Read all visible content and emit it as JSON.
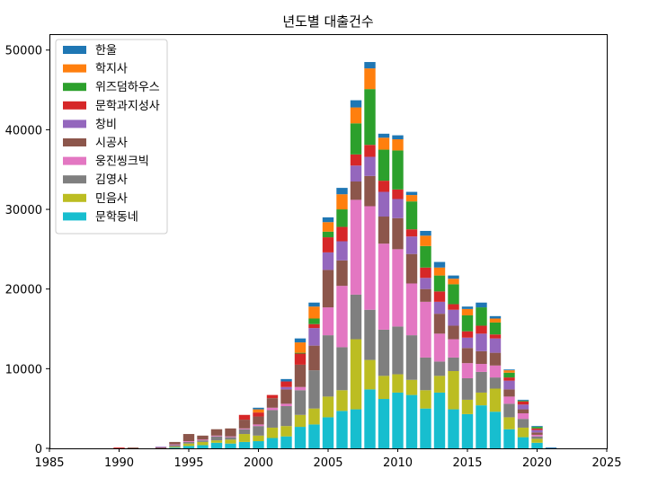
{
  "chart_data": {
    "type": "bar",
    "stacked": true,
    "title": "년도별 대출건수",
    "xlabel": "",
    "ylabel": "",
    "xlim": [
      1985,
      2025
    ],
    "ylim": [
      0,
      52000
    ],
    "xticks": [
      1985,
      1990,
      1995,
      2000,
      2005,
      2010,
      2015,
      2020,
      2025
    ],
    "yticks": [
      0,
      10000,
      20000,
      30000,
      40000,
      50000
    ],
    "grid": false,
    "legend_position": "upper-left",
    "x": [
      1990,
      1991,
      1993,
      1994,
      1995,
      1996,
      1997,
      1998,
      1999,
      2000,
      2001,
      2002,
      2003,
      2004,
      2005,
      2006,
      2007,
      2008,
      2009,
      2010,
      2011,
      2012,
      2013,
      2014,
      2015,
      2016,
      2017,
      2018,
      2019,
      2020,
      2021
    ],
    "series": [
      {
        "name": "문학동네",
        "color": "#17becf",
        "values": [
          0,
          0,
          0,
          100,
          300,
          400,
          700,
          600,
          800,
          900,
          1300,
          1500,
          2700,
          3000,
          3900,
          4700,
          4900,
          7400,
          6200,
          7000,
          6700,
          5000,
          7000,
          4900,
          4300,
          5400,
          4600,
          2400,
          1400,
          700,
          0
        ]
      },
      {
        "name": "민음사",
        "color": "#bcbd22",
        "values": [
          0,
          0,
          0,
          100,
          300,
          400,
          300,
          500,
          1000,
          700,
          1300,
          1300,
          1500,
          2000,
          2600,
          2600,
          8800,
          3700,
          2900,
          2300,
          1900,
          2300,
          2100,
          4800,
          1800,
          1600,
          2900,
          1500,
          1200,
          500,
          0
        ]
      },
      {
        "name": "김영사",
        "color": "#7f7f7f",
        "values": [
          0,
          0,
          0,
          200,
          200,
          200,
          500,
          300,
          600,
          1200,
          2200,
          2500,
          3100,
          4800,
          7700,
          5400,
          5600,
          6300,
          5800,
          6000,
          5600,
          4100,
          1800,
          1700,
          2700,
          2600,
          1400,
          1700,
          1100,
          300,
          0
        ]
      },
      {
        "name": "웅진씽크빅",
        "color": "#e377c2",
        "values": [
          0,
          0,
          0,
          100,
          100,
          100,
          100,
          100,
          100,
          200,
          300,
          300,
          400,
          0,
          3500,
          7700,
          11900,
          13000,
          10800,
          9700,
          6500,
          7000,
          3500,
          2300,
          1900,
          1000,
          1500,
          900,
          700,
          200,
          0
        ]
      },
      {
        "name": "시공사",
        "color": "#8c564b",
        "values": [
          0,
          100,
          100,
          300,
          900,
          500,
          800,
          1000,
          1100,
          1000,
          1200,
          1800,
          2800,
          3100,
          4700,
          3200,
          2300,
          3800,
          3400,
          3900,
          3700,
          1600,
          2500,
          1700,
          1900,
          1600,
          1600,
          900,
          500,
          300,
          0
        ]
      },
      {
        "name": "창비",
        "color": "#9467bd",
        "values": [
          0,
          0,
          100,
          0,
          0,
          0,
          0,
          0,
          0,
          0,
          0,
          300,
          0,
          2200,
          2200,
          2400,
          2000,
          2400,
          3100,
          2400,
          2200,
          1400,
          1500,
          2000,
          1300,
          2200,
          1800,
          1100,
          600,
          300,
          0
        ]
      },
      {
        "name": "문학과지성사",
        "color": "#d62728",
        "values": [
          100,
          0,
          0,
          0,
          0,
          0,
          0,
          0,
          600,
          500,
          400,
          700,
          1400,
          500,
          1900,
          1800,
          1400,
          1500,
          1400,
          1200,
          900,
          1300,
          1300,
          700,
          800,
          1000,
          500,
          400,
          400,
          200,
          0
        ]
      },
      {
        "name": "위즈덤하우스",
        "color": "#2ca02c",
        "values": [
          0,
          0,
          0,
          0,
          0,
          0,
          0,
          0,
          0,
          0,
          0,
          0,
          100,
          700,
          700,
          2200,
          3900,
          7000,
          3900,
          4900,
          3500,
          2700,
          2000,
          2500,
          2000,
          2300,
          1500,
          600,
          100,
          200,
          0
        ]
      },
      {
        "name": "학지사",
        "color": "#ff7f0e",
        "values": [
          0,
          0,
          0,
          0,
          0,
          0,
          0,
          0,
          0,
          400,
          0,
          0,
          1300,
          1500,
          1200,
          1900,
          2000,
          2600,
          1500,
          1400,
          800,
          1300,
          1000,
          700,
          800,
          0,
          500,
          300,
          0,
          0,
          0
        ]
      },
      {
        "name": "한울",
        "color": "#1f77b4",
        "values": [
          0,
          0,
          0,
          0,
          0,
          0,
          0,
          0,
          0,
          200,
          0,
          300,
          500,
          500,
          600,
          800,
          900,
          800,
          500,
          500,
          400,
          600,
          700,
          400,
          300,
          600,
          300,
          100,
          100,
          100,
          100
        ]
      }
    ]
  }
}
